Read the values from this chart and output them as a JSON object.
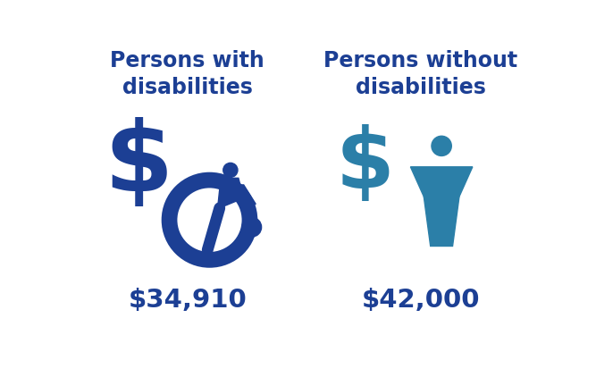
{
  "bg_color": "#ffffff",
  "dark_blue": "#1c3f94",
  "teal_blue": "#2b7fa8",
  "title1": "Persons with\ndisabilities",
  "title2": "Persons without\ndisabilities",
  "value1": "$34,910",
  "value2": "$42,000",
  "title_fontsize": 17,
  "value_fontsize": 21
}
